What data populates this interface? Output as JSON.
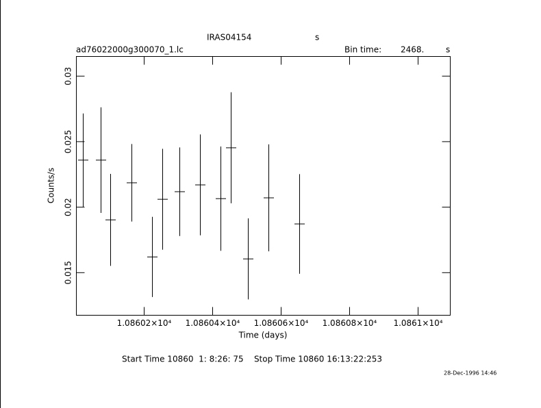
{
  "chart_data": {
    "type": "errorbar",
    "title": "IRAS04154",
    "title_unit": "s",
    "file_name": "ad76022000g300070_1.lc",
    "bin_time_label": "Bin time:",
    "bin_time": "2468.",
    "bin_time_unit": "s",
    "xlabel": "Time (days)",
    "ylabel": "Counts/s",
    "x": [
      10860.022,
      10860.074,
      10860.102,
      10860.164,
      10860.224,
      10860.254,
      10860.304,
      10860.364,
      10860.424,
      10860.454,
      10860.504,
      10860.564,
      10860.654
    ],
    "xerr": [
      0.015,
      0.015,
      0.015,
      0.015,
      0.015,
      0.015,
      0.015,
      0.015,
      0.015,
      0.015,
      0.015,
      0.015,
      0.015
    ],
    "values": [
      0.02359,
      0.02359,
      0.01903,
      0.02186,
      0.0162,
      0.0206,
      0.02118,
      0.0217,
      0.02065,
      0.02453,
      0.01605,
      0.02071,
      0.01872
    ],
    "yerr": [
      0.00356,
      0.00403,
      0.00351,
      0.00296,
      0.00306,
      0.00385,
      0.00338,
      0.00385,
      0.00398,
      0.00424,
      0.00309,
      0.00408,
      0.0038
    ],
    "color": "#000000",
    "xlim": [
      10860.002,
      10861.094
    ],
    "xticks": [
      {
        "value": 10860.2,
        "label": "1.08602×10⁴"
      },
      {
        "value": 10860.4,
        "label": "1.08604×10⁴"
      },
      {
        "value": 10860.6,
        "label": "1.08606×10⁴"
      },
      {
        "value": 10860.8,
        "label": "1.08608×10⁴"
      },
      {
        "value": 10861,
        "label": "1.0861×10⁴"
      }
    ],
    "ylim": [
      0.01175,
      0.0315
    ],
    "yticks": [
      0.015,
      0.02,
      0.025,
      0.03
    ],
    "footer": "Start Time 10860  1: 8:26: 75    Stop Time 10860 16:13:22:253",
    "date": "28-Dec-1996 14:46"
  }
}
